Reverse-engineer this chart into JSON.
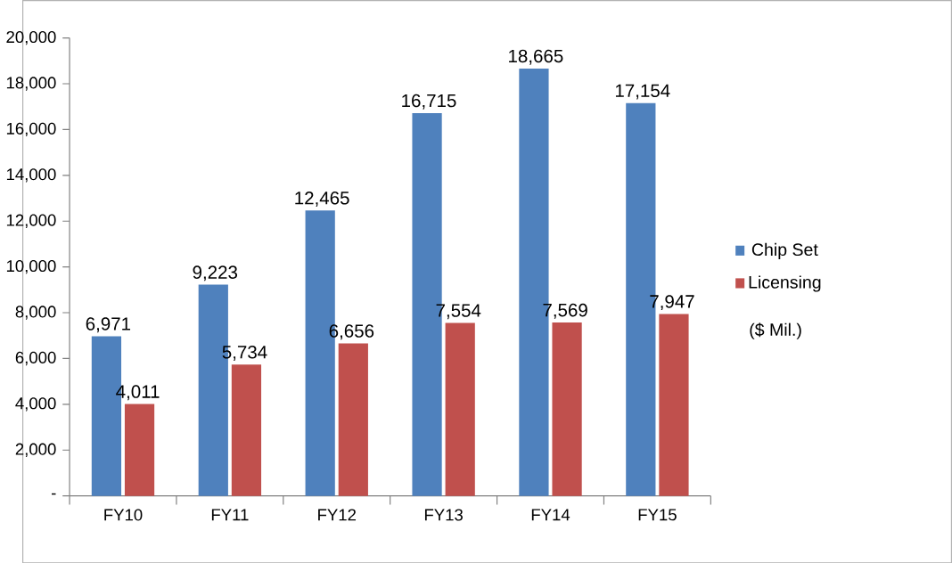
{
  "chart_data": {
    "type": "bar",
    "categories": [
      "FY10",
      "FY11",
      "FY12",
      "FY13",
      "FY14",
      "FY15"
    ],
    "series": [
      {
        "name": "Chip Set",
        "color": "#4f81bd",
        "values": [
          6971,
          9223,
          12465,
          16715,
          18665,
          17154
        ],
        "value_labels": [
          "6,971",
          "9,223",
          "12,465",
          "16,715",
          "18,665",
          "17,154"
        ]
      },
      {
        "name": "Licensing",
        "color": "#c0504d",
        "values": [
          4011,
          5734,
          6656,
          7554,
          7569,
          7947
        ],
        "value_labels": [
          "4,011",
          "5,734",
          "6,656",
          "7,554",
          "7,569",
          "7,947"
        ]
      }
    ],
    "ylim": [
      0,
      20000
    ],
    "yticks": [
      {
        "value": 0,
        "label": "-"
      },
      {
        "value": 2000,
        "label": "2,000"
      },
      {
        "value": 4000,
        "label": "4,000"
      },
      {
        "value": 6000,
        "label": "6,000"
      },
      {
        "value": 8000,
        "label": "8,000"
      },
      {
        "value": 10000,
        "label": "10,000"
      },
      {
        "value": 12000,
        "label": "12,000"
      },
      {
        "value": 14000,
        "label": "14,000"
      },
      {
        "value": 16000,
        "label": "16,000"
      },
      {
        "value": 18000,
        "label": "18,000"
      },
      {
        "value": 20000,
        "label": "20,000"
      }
    ],
    "legend": "right",
    "grid": false,
    "annotations": [
      "($ Mil.)"
    ]
  }
}
